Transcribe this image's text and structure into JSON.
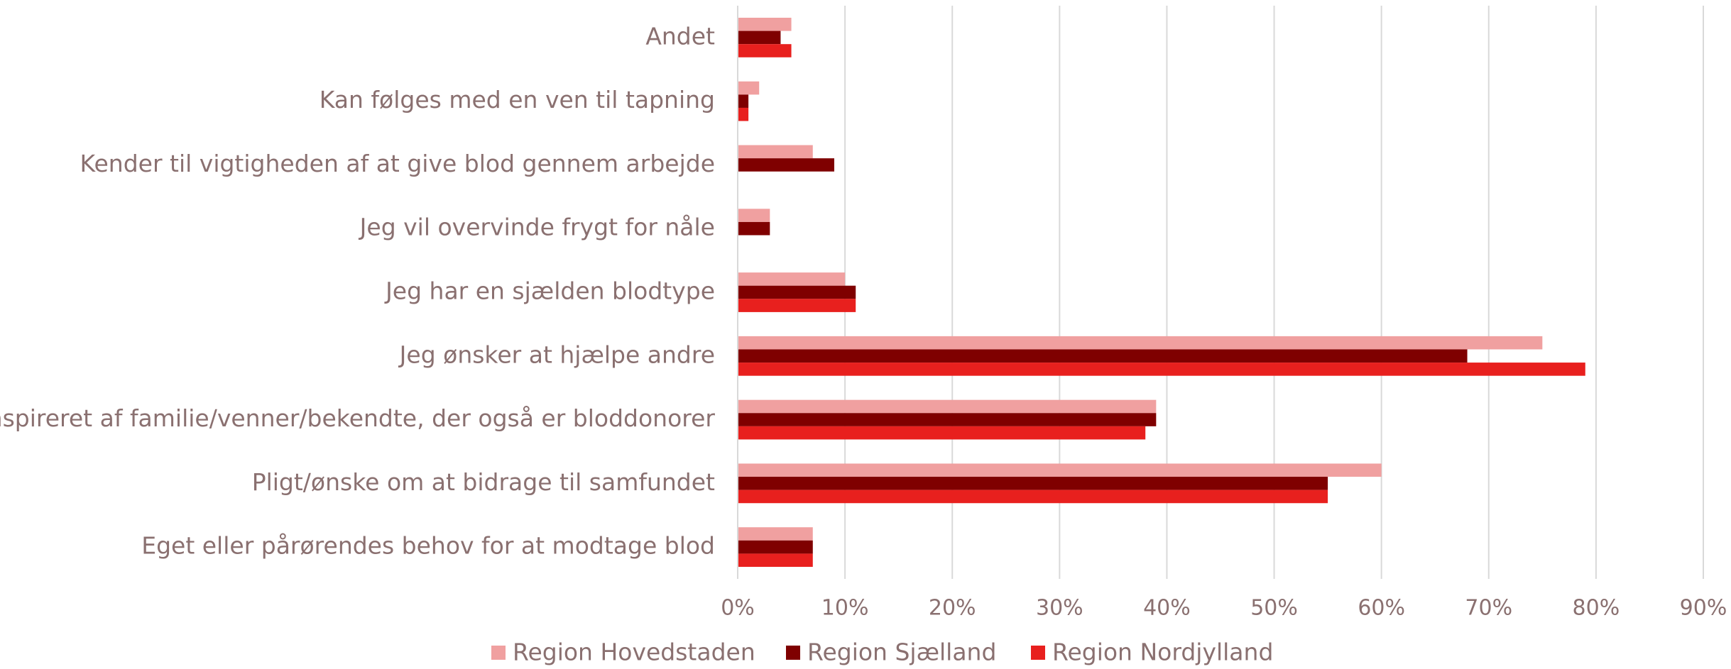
{
  "chart_data": {
    "type": "bar",
    "orientation": "horizontal",
    "categories": [
      "Andet",
      "Kan følges med en ven til tapning",
      "Kender til vigtigheden af at give blod gennem arbejde",
      "Jeg vil overvinde frygt for nåle",
      "Jeg har en sjælden blodtype",
      "Jeg ønsker at hjælpe andre",
      "Inspireret af familie/venner/bekendte, der også er bloddonorer",
      "Pligt/ønske om at bidrage til samfundet",
      "Eget eller pårørendes behov for at modtage blod"
    ],
    "series": [
      {
        "name": "Region Hovedstaden",
        "color": "#f0a0a0",
        "values": [
          5,
          2,
          7,
          3,
          10,
          75,
          39,
          60,
          7
        ]
      },
      {
        "name": "Region Sjælland",
        "color": "#7f0000",
        "values": [
          4,
          1,
          9,
          3,
          11,
          68,
          39,
          55,
          7
        ]
      },
      {
        "name": "Region Nordjylland",
        "color": "#e8201e",
        "values": [
          5,
          1,
          0,
          0,
          11,
          79,
          38,
          55,
          7
        ]
      }
    ],
    "xlim": [
      0,
      90
    ],
    "xticks": [
      {
        "value": 0,
        "label": "0%"
      },
      {
        "value": 10,
        "label": "10%"
      },
      {
        "value": 20,
        "label": "20%"
      },
      {
        "value": 30,
        "label": "30%"
      },
      {
        "value": 40,
        "label": "40%"
      },
      {
        "value": 50,
        "label": "50%"
      },
      {
        "value": 60,
        "label": "60%"
      },
      {
        "value": 70,
        "label": "70%"
      },
      {
        "value": 80,
        "label": "80%"
      },
      {
        "value": 90,
        "label": "90%"
      }
    ],
    "grid": true,
    "legend": "bottom"
  }
}
